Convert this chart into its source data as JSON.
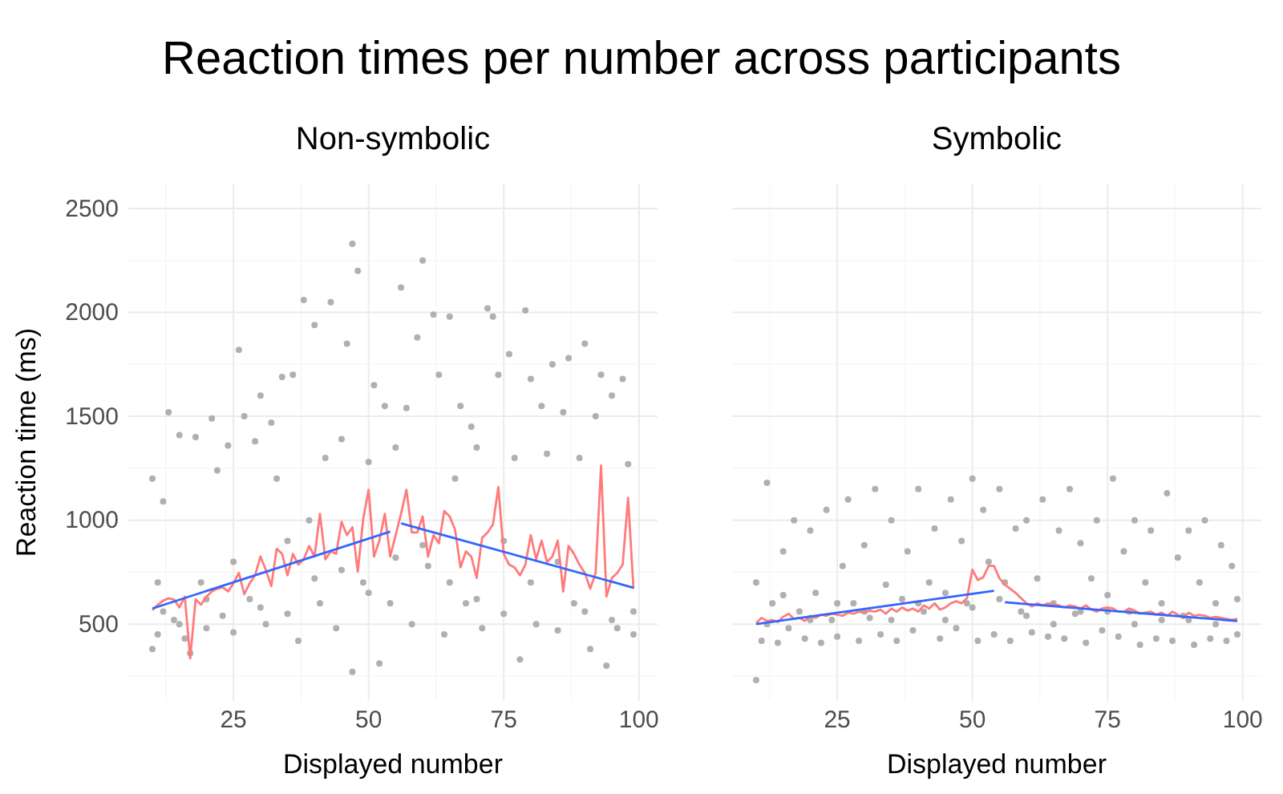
{
  "chart_data": [
    {
      "type": "scatter",
      "title": "Non-symbolic",
      "annotations": [
        "Reaction times per number across participants"
      ],
      "xlabel": "Displayed number",
      "ylabel": "Reaction time (ms)",
      "xlim": [
        5.55,
        103.45
      ],
      "ylim": [
        130,
        2620
      ],
      "xticks": [
        {
          "value": 12.5,
          "label": null
        },
        25,
        {
          "value": 37.5,
          "label": null
        },
        50,
        {
          "value": 62.5,
          "label": null
        },
        75,
        {
          "value": 87.5,
          "label": null
        },
        100
      ],
      "yticks": [
        {
          "value": 250,
          "label": null
        },
        500,
        {
          "value": 750,
          "label": null
        },
        1000,
        {
          "value": 1250,
          "label": null
        },
        1500,
        {
          "value": 1750,
          "label": null
        },
        2000,
        {
          "value": 2250,
          "label": null
        },
        2500
      ],
      "grid": true,
      "series": [
        {
          "type": "scatter",
          "color": "#b0b0b0",
          "x": [
            10,
            10,
            11,
            12,
            13,
            14,
            15,
            16,
            17,
            18,
            19,
            20,
            21,
            22,
            23,
            24,
            25,
            26,
            27,
            28,
            29,
            30,
            31,
            32,
            33,
            34,
            35,
            36,
            37,
            38,
            39,
            40,
            41,
            42,
            43,
            44,
            45,
            46,
            47,
            47,
            48,
            49,
            50,
            51,
            52,
            53,
            54,
            55,
            56,
            57,
            58,
            59,
            60,
            61,
            62,
            63,
            64,
            65,
            66,
            67,
            68,
            69,
            70,
            71,
            72,
            73,
            74,
            75,
            76,
            77,
            78,
            79,
            80,
            81,
            82,
            83,
            84,
            85,
            86,
            87,
            88,
            89,
            90,
            91,
            92,
            93,
            94,
            95,
            96,
            97,
            98,
            99,
            12,
            20,
            30,
            40,
            50,
            60,
            70,
            80,
            90,
            99,
            15,
            25,
            35,
            45,
            55,
            65,
            75,
            85,
            95,
            11
          ],
          "values": [
            380,
            1200,
            450,
            1090,
            1520,
            520,
            1410,
            430,
            360,
            1400,
            700,
            480,
            1490,
            1240,
            540,
            1360,
            460,
            1820,
            1500,
            620,
            1380,
            1600,
            500,
            1470,
            1200,
            1690,
            550,
            1700,
            420,
            2060,
            1000,
            1940,
            600,
            1300,
            2050,
            480,
            1390,
            1850,
            2330,
            270,
            2200,
            700,
            1280,
            1650,
            310,
            1550,
            600,
            1350,
            2120,
            1540,
            500,
            1880,
            2250,
            780,
            1990,
            1700,
            450,
            1980,
            1200,
            1550,
            600,
            1450,
            1350,
            480,
            2020,
            1980,
            1700,
            550,
            1800,
            1300,
            330,
            2010,
            1680,
            500,
            1550,
            1320,
            1750,
            470,
            1520,
            1780,
            600,
            1300,
            1850,
            380,
            1500,
            1700,
            300,
            1600,
            480,
            1680,
            1270,
            450,
            560,
            620,
            580,
            720,
            650,
            880,
            620,
            700,
            560,
            560,
            500,
            800,
            900,
            760,
            820,
            700,
            900,
            800,
            520,
            700
          ]
        },
        {
          "type": "line",
          "color": "#ff7b7b",
          "x": [
            10,
            11,
            12,
            13,
            14,
            15,
            16,
            17,
            18,
            19,
            20,
            21,
            22,
            23,
            24,
            25,
            26,
            27,
            28,
            29,
            30,
            31,
            32,
            33,
            34,
            35,
            36,
            37,
            38,
            39,
            40,
            41,
            42,
            43,
            44,
            45,
            46,
            47,
            48,
            49,
            50,
            51,
            52,
            53,
            54,
            55,
            56,
            57,
            58,
            59,
            60,
            61,
            62,
            63,
            64,
            65,
            66,
            67,
            68,
            69,
            70,
            71,
            72,
            73,
            74,
            75,
            76,
            77,
            78,
            79,
            80,
            81,
            82,
            83,
            84,
            85,
            86,
            87,
            88,
            89,
            90,
            91,
            92,
            93,
            94,
            95,
            96,
            97,
            98,
            99
          ],
          "values": [
            567,
            593,
            613,
            624,
            619,
            580,
            632,
            335,
            619,
            593,
            632,
            657,
            670,
            678,
            657,
            696,
            747,
            644,
            696,
            735,
            825,
            760,
            683,
            863,
            838,
            735,
            838,
            786,
            812,
            876,
            825,
            1031,
            812,
            850,
            838,
            992,
            928,
            966,
            752,
            1005,
            1147,
            825,
            902,
            1031,
            825,
            928,
            1031,
            1147,
            941,
            941,
            1018,
            825,
            928,
            889,
            1044,
            1018,
            954,
            773,
            850,
            825,
            722,
            915,
            941,
            979,
            1160,
            838,
            786,
            773,
            735,
            786,
            928,
            812,
            902,
            799,
            825,
            902,
            657,
            876,
            838,
            786,
            747,
            670,
            747,
            1263,
            632,
            722,
            747,
            786,
            1108,
            670
          ]
        },
        {
          "type": "line",
          "color": "#3366ff",
          "x": [
            10,
            54
          ],
          "values": [
            575,
            945
          ]
        },
        {
          "type": "line",
          "color": "#3366ff",
          "x": [
            56,
            99
          ],
          "values": [
            985,
            675
          ]
        }
      ]
    },
    {
      "type": "scatter",
      "title": "Symbolic",
      "xlabel": "Displayed number",
      "xlim": [
        5.55,
        103.45
      ],
      "ylim": [
        130,
        2620
      ],
      "tick_labels": "x",
      "xticks": [
        {
          "value": 12.5,
          "label": null
        },
        25,
        {
          "value": 37.5,
          "label": null
        },
        50,
        {
          "value": 62.5,
          "label": null
        },
        75,
        {
          "value": 87.5,
          "label": null
        },
        100
      ],
      "yticks": [
        {
          "value": 250,
          "label": null
        },
        500,
        {
          "value": 750,
          "label": null
        },
        1000,
        {
          "value": 1250,
          "label": null
        },
        1500,
        {
          "value": 1750,
          "label": null
        },
        2000,
        {
          "value": 2250,
          "label": null
        },
        2500
      ],
      "grid": true,
      "series": [
        {
          "type": "scatter",
          "color": "#b0b0b0",
          "x": [
            10,
            10,
            11,
            12,
            13,
            14,
            15,
            16,
            17,
            18,
            19,
            20,
            21,
            22,
            23,
            24,
            25,
            26,
            27,
            28,
            29,
            30,
            31,
            32,
            33,
            34,
            35,
            36,
            37,
            38,
            39,
            40,
            41,
            42,
            43,
            44,
            45,
            46,
            47,
            48,
            49,
            50,
            51,
            52,
            53,
            54,
            55,
            56,
            57,
            58,
            59,
            60,
            61,
            62,
            63,
            64,
            65,
            66,
            67,
            68,
            69,
            70,
            71,
            72,
            73,
            74,
            75,
            76,
            77,
            78,
            79,
            80,
            81,
            82,
            83,
            84,
            85,
            86,
            87,
            88,
            89,
            90,
            91,
            92,
            93,
            94,
            95,
            96,
            97,
            98,
            99,
            99,
            12,
            20,
            30,
            40,
            50,
            60,
            70,
            80,
            90,
            15,
            25,
            35,
            45,
            55,
            65,
            75,
            85,
            95
          ],
          "values": [
            230,
            700,
            420,
            1180,
            600,
            410,
            850,
            480,
            1000,
            560,
            430,
            950,
            650,
            410,
            1050,
            520,
            440,
            780,
            1100,
            600,
            420,
            880,
            530,
            1150,
            450,
            690,
            1000,
            420,
            620,
            850,
            470,
            1150,
            560,
            700,
            960,
            430,
            650,
            1100,
            480,
            900,
            600,
            1200,
            420,
            1050,
            800,
            450,
            1150,
            700,
            420,
            960,
            560,
            1000,
            460,
            720,
            1100,
            440,
            600,
            950,
            430,
            1150,
            550,
            890,
            410,
            720,
            1000,
            470,
            640,
            1200,
            440,
            850,
            560,
            1000,
            400,
            700,
            950,
            430,
            600,
            1130,
            420,
            820,
            540,
            950,
            400,
            700,
            1000,
            430,
            600,
            880,
            420,
            780,
            450,
            620,
            500,
            520,
            560,
            600,
            580,
            540,
            560,
            500,
            520,
            640,
            600,
            520,
            520,
            620,
            500,
            560,
            520,
            500
          ]
        },
        {
          "type": "line",
          "color": "#ff7b7b",
          "x": [
            10,
            11,
            12,
            13,
            14,
            15,
            16,
            17,
            18,
            19,
            20,
            21,
            22,
            23,
            24,
            25,
            26,
            27,
            28,
            29,
            30,
            31,
            32,
            33,
            34,
            35,
            36,
            37,
            38,
            39,
            40,
            41,
            42,
            43,
            44,
            45,
            46,
            47,
            48,
            49,
            50,
            51,
            52,
            53,
            54,
            55,
            56,
            57,
            58,
            59,
            60,
            61,
            62,
            63,
            64,
            65,
            66,
            67,
            68,
            69,
            70,
            71,
            72,
            73,
            74,
            75,
            76,
            77,
            78,
            79,
            80,
            81,
            82,
            83,
            84,
            85,
            86,
            87,
            88,
            89,
            90,
            91,
            92,
            93,
            94,
            95,
            96,
            97,
            98,
            99
          ],
          "values": [
            505,
            530,
            515,
            520,
            510,
            535,
            550,
            525,
            530,
            515,
            540,
            530,
            545,
            540,
            550,
            545,
            540,
            555,
            550,
            560,
            555,
            565,
            560,
            570,
            550,
            575,
            560,
            580,
            565,
            575,
            560,
            590,
            575,
            600,
            570,
            580,
            600,
            610,
            600,
            625,
            762,
            712,
            725,
            780,
            780,
            720,
            690,
            670,
            650,
            625,
            600,
            585,
            600,
            590,
            600,
            595,
            590,
            580,
            590,
            585,
            575,
            590,
            570,
            560,
            575,
            580,
            575,
            560,
            560,
            575,
            565,
            550,
            555,
            560,
            545,
            555,
            540,
            560,
            545,
            530,
            555,
            540,
            545,
            540,
            530,
            535,
            530,
            525,
            520,
            525
          ]
        },
        {
          "type": "line",
          "color": "#3366ff",
          "x": [
            10,
            54
          ],
          "values": [
            500,
            660
          ]
        },
        {
          "type": "line",
          "color": "#3366ff",
          "x": [
            56,
            99
          ],
          "values": [
            605,
            515
          ]
        }
      ]
    }
  ]
}
